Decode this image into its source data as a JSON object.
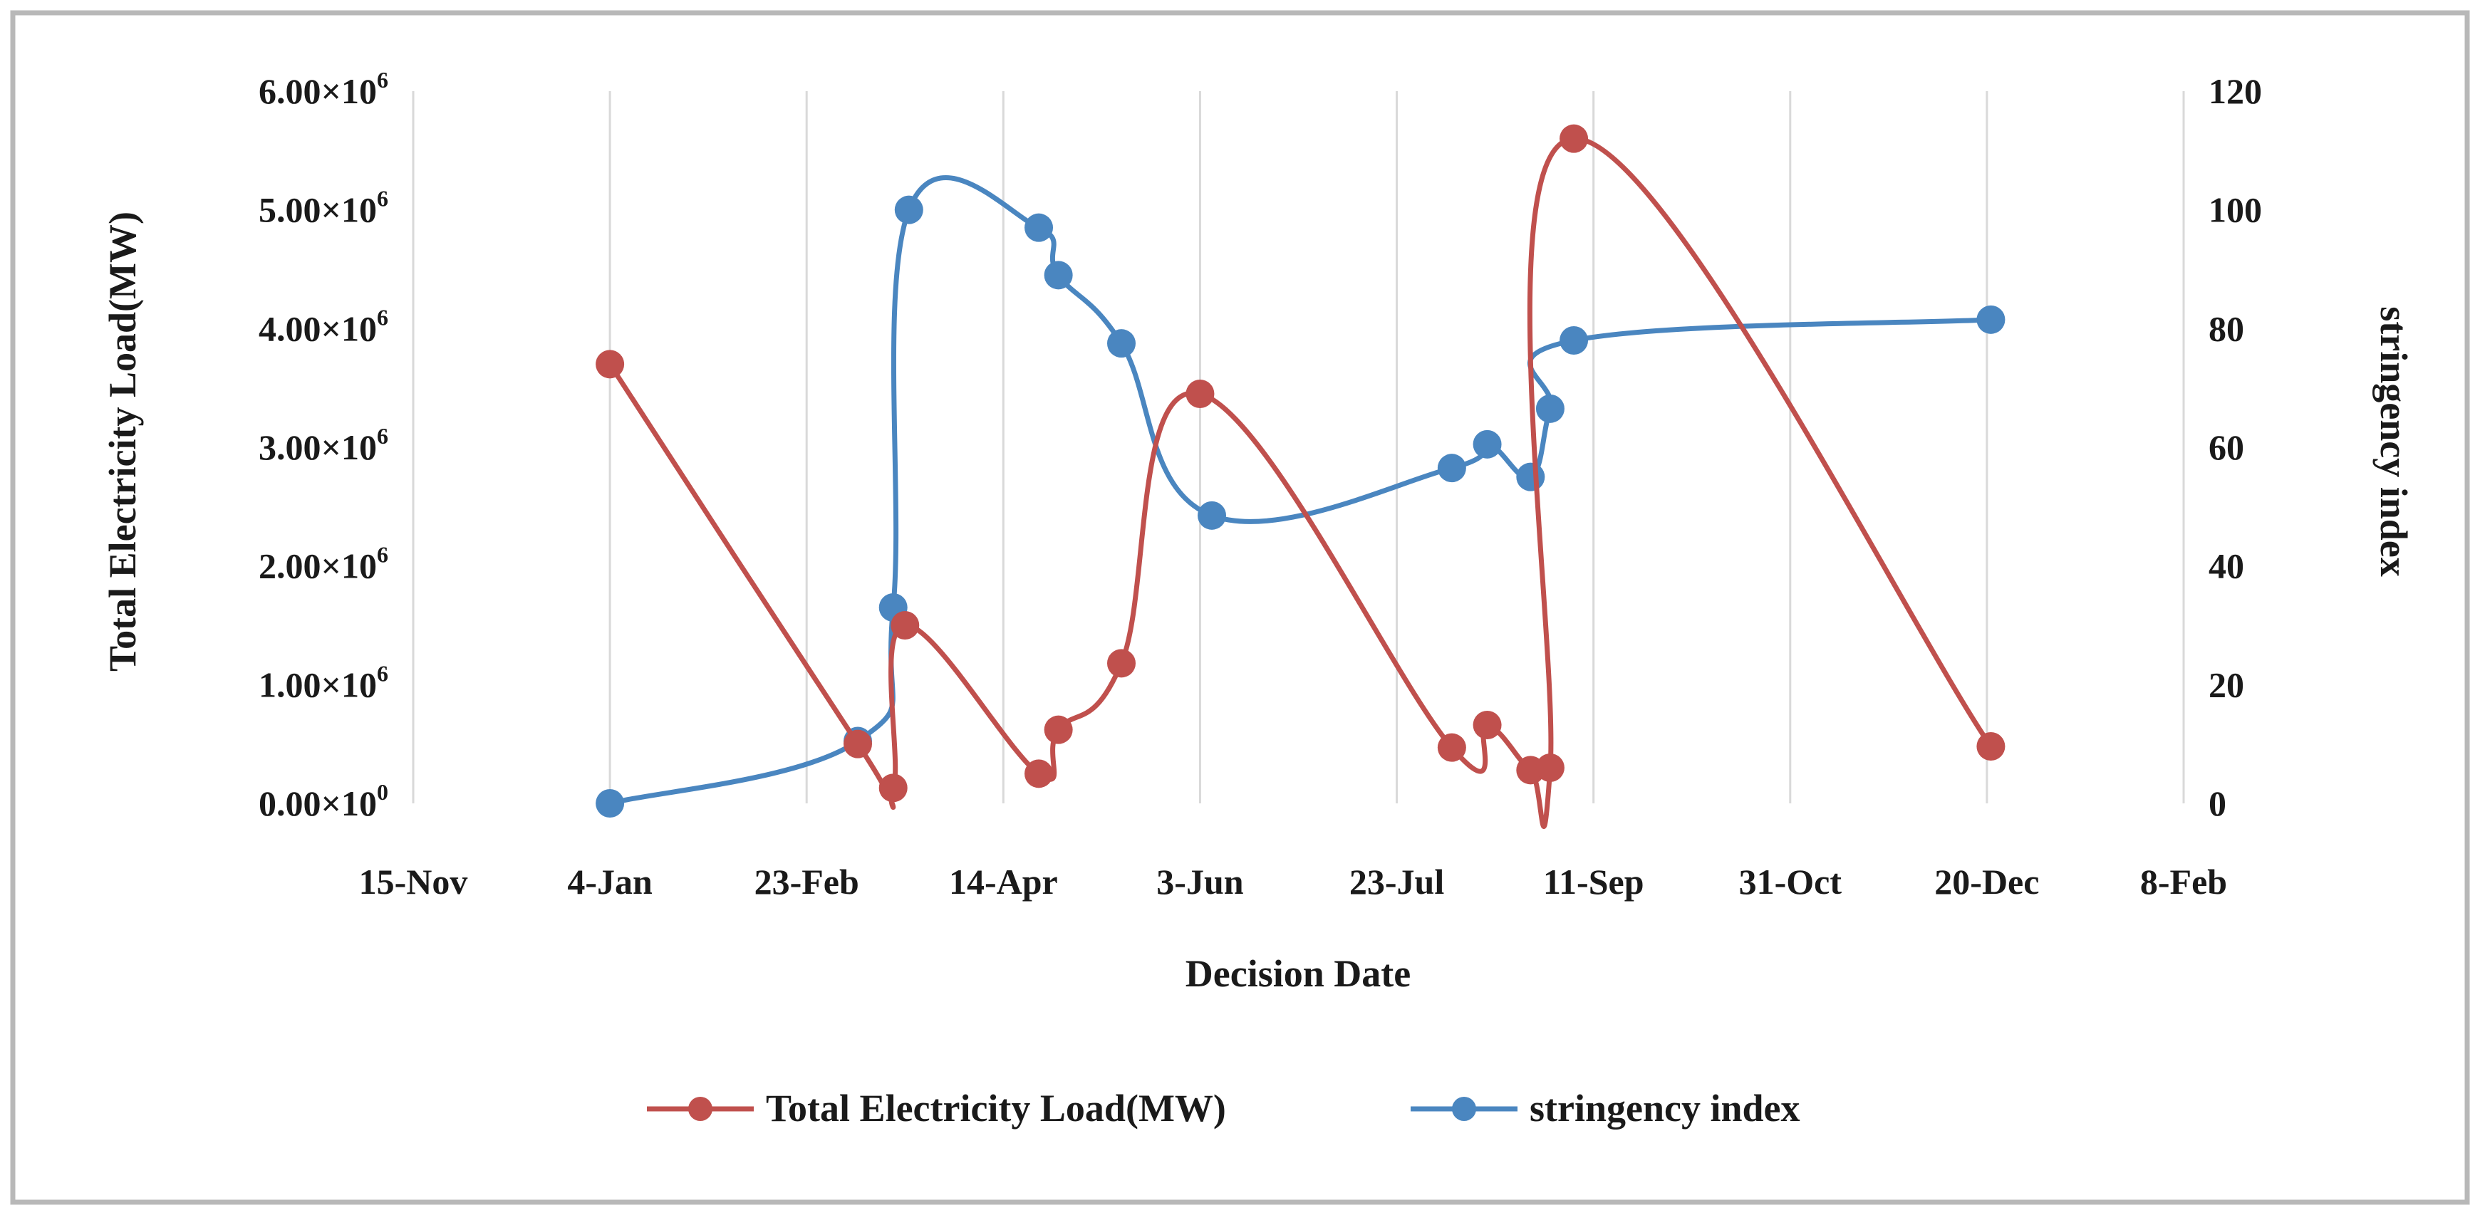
{
  "chart_data": {
    "type": "line",
    "xlabel": "Decision Date",
    "ylabel_left": "Total Electricity Load(MW)",
    "ylabel_right": "stringency index",
    "x_ticks": [
      "15-Nov",
      "4-Jan",
      "23-Feb",
      "14-Apr",
      "3-Jun",
      "23-Jul",
      "11-Sep",
      "31-Oct",
      "20-Dec",
      "8-Feb"
    ],
    "x_tick_days": [
      0,
      50,
      100,
      150,
      200,
      250,
      300,
      350,
      400,
      450
    ],
    "xlim_days": [
      0,
      450
    ],
    "y_left": {
      "ylim": [
        0,
        6000000
      ],
      "ticks": [
        {
          "value": 0,
          "mantissa": "0.00×10",
          "exp": "0"
        },
        {
          "value": 1000000,
          "mantissa": "1.00×10",
          "exp": "6"
        },
        {
          "value": 2000000,
          "mantissa": "2.00×10",
          "exp": "6"
        },
        {
          "value": 3000000,
          "mantissa": "3.00×10",
          "exp": "6"
        },
        {
          "value": 4000000,
          "mantissa": "4.00×10",
          "exp": "6"
        },
        {
          "value": 5000000,
          "mantissa": "5.00×10",
          "exp": "6"
        },
        {
          "value": 6000000,
          "mantissa": "6.00×10",
          "exp": "6"
        }
      ]
    },
    "y_right": {
      "ylim": [
        0,
        120
      ],
      "ticks": [
        "0",
        "20",
        "40",
        "60",
        "80",
        "100",
        "120"
      ]
    },
    "series": [
      {
        "name": "Total Electricity Load(MW)",
        "axis": "left",
        "color": "#c0504d",
        "points": [
          {
            "x": 50,
            "y": 3700000
          },
          {
            "x": 113,
            "y": 500000
          },
          {
            "x": 122,
            "y": 130000
          },
          {
            "x": 125,
            "y": 1500000
          },
          {
            "x": 159,
            "y": 250000
          },
          {
            "x": 164,
            "y": 620000
          },
          {
            "x": 180,
            "y": 1180000
          },
          {
            "x": 200,
            "y": 3450000
          },
          {
            "x": 264,
            "y": 470000
          },
          {
            "x": 273,
            "y": 660000
          },
          {
            "x": 284,
            "y": 280000
          },
          {
            "x": 289,
            "y": 300000
          },
          {
            "x": 295,
            "y": 5600000
          },
          {
            "x": 401,
            "y": 480000
          }
        ]
      },
      {
        "name": "stringency index",
        "axis": "right",
        "color": "#4a86c0",
        "points": [
          {
            "x": 50,
            "y": 0
          },
          {
            "x": 113,
            "y": 10.5
          },
          {
            "x": 122,
            "y": 33
          },
          {
            "x": 126,
            "y": 100
          },
          {
            "x": 159,
            "y": 97
          },
          {
            "x": 164,
            "y": 89
          },
          {
            "x": 180,
            "y": 77.5
          },
          {
            "x": 203,
            "y": 48.5
          },
          {
            "x": 264,
            "y": 56.5
          },
          {
            "x": 273,
            "y": 60.5
          },
          {
            "x": 284,
            "y": 55
          },
          {
            "x": 289,
            "y": 66.5
          },
          {
            "x": 295,
            "y": 78
          },
          {
            "x": 401,
            "y": 81.5
          }
        ]
      }
    ],
    "legend": {
      "position": "bottom",
      "items": [
        "Total Electricity Load(MW)",
        "stringency index"
      ]
    },
    "grid": "vertical-only"
  },
  "colors": {
    "frame": "#b8b8b8",
    "grid": "#d9d9d9",
    "load": "#c0504d",
    "stringency": "#4a86c0"
  }
}
